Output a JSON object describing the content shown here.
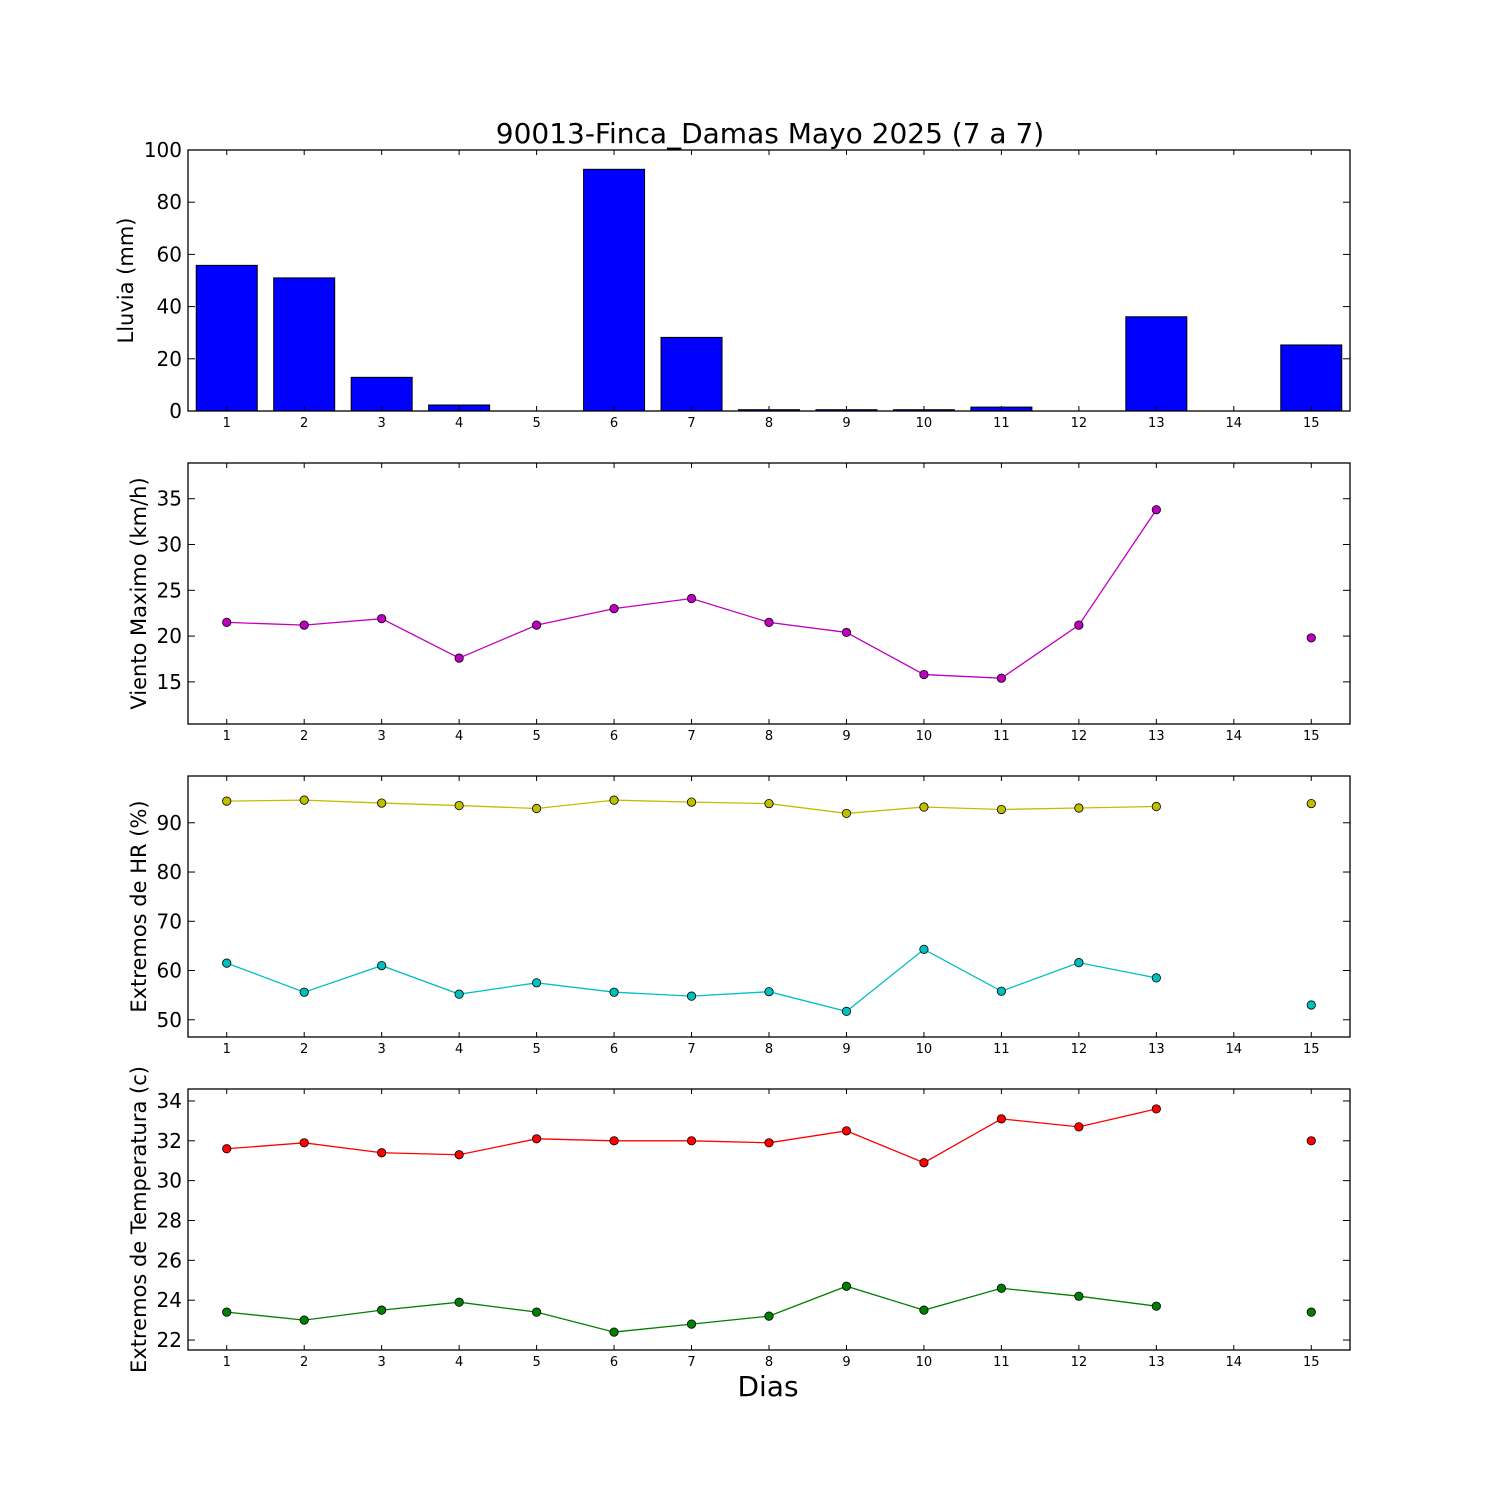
{
  "title": "90013-Finca_Damas Mayo 2025  (7 a 7)",
  "xlabel": "Dias",
  "chart_data": [
    {
      "type": "bar",
      "ylabel": "Lluvia (mm)",
      "x": [
        1,
        2,
        3,
        4,
        5,
        6,
        7,
        8,
        9,
        10,
        11,
        12,
        13,
        14,
        15
      ],
      "xticks": [
        "1",
        "2",
        "3",
        "4",
        "5",
        "6",
        "7",
        "8",
        "9",
        "10",
        "11",
        "12",
        "13",
        "14",
        "15"
      ],
      "ylim": [
        0,
        100
      ],
      "yticks": [
        0,
        20,
        40,
        60,
        80,
        100
      ],
      "series": [
        {
          "color": "#0000ff",
          "values": [
            55.8,
            51.0,
            12.9,
            2.3,
            0.0,
            92.6,
            28.2,
            0.5,
            0.5,
            0.5,
            1.5,
            0.0,
            36.1,
            null,
            25.3
          ]
        }
      ]
    },
    {
      "type": "line",
      "ylabel": "Viento Maximo (km/h)",
      "x": [
        1,
        2,
        3,
        4,
        5,
        6,
        7,
        8,
        9,
        10,
        11,
        12,
        13,
        14,
        15
      ],
      "xticks": [
        "1",
        "2",
        "3",
        "4",
        "5",
        "6",
        "7",
        "8",
        "9",
        "10",
        "11",
        "12",
        "13",
        "14",
        "15"
      ],
      "ylim": [
        10.4,
        38.9
      ],
      "yticks": [
        15,
        20,
        25,
        30,
        35
      ],
      "series": [
        {
          "color": "#bf00bf",
          "values": [
            21.5,
            21.2,
            21.9,
            17.6,
            21.2,
            23.0,
            24.1,
            21.5,
            20.4,
            15.8,
            15.4,
            21.2,
            33.8,
            null,
            19.8
          ]
        }
      ]
    },
    {
      "type": "line",
      "ylabel": "Extremos de HR (%)",
      "x": [
        1,
        2,
        3,
        4,
        5,
        6,
        7,
        8,
        9,
        10,
        11,
        12,
        13,
        14,
        15
      ],
      "xticks": [
        "1",
        "2",
        "3",
        "4",
        "5",
        "6",
        "7",
        "8",
        "9",
        "10",
        "11",
        "12",
        "13",
        "14",
        "15"
      ],
      "ylim": [
        46.5,
        99.5
      ],
      "yticks": [
        50,
        60,
        70,
        80,
        90
      ],
      "series": [
        {
          "color": "#bfbf00",
          "values": [
            94.4,
            94.6,
            94.0,
            93.5,
            92.9,
            94.6,
            94.2,
            93.9,
            91.9,
            93.2,
            92.7,
            93.0,
            93.3,
            null,
            93.9
          ]
        },
        {
          "color": "#00bfbf",
          "values": [
            61.5,
            55.6,
            61.0,
            55.2,
            57.5,
            55.6,
            54.8,
            55.7,
            51.7,
            64.3,
            55.8,
            61.6,
            58.5,
            null,
            53.0
          ]
        }
      ]
    },
    {
      "type": "line",
      "ylabel": "Extremos de Temperatura (c)",
      "x": [
        1,
        2,
        3,
        4,
        5,
        6,
        7,
        8,
        9,
        10,
        11,
        12,
        13,
        14,
        15
      ],
      "xticks": [
        "1",
        "2",
        "3",
        "4",
        "5",
        "6",
        "7",
        "8",
        "9",
        "10",
        "11",
        "12",
        "13",
        "14",
        "15"
      ],
      "ylim": [
        21.5,
        34.6
      ],
      "yticks": [
        22,
        24,
        26,
        28,
        30,
        32,
        34
      ],
      "series": [
        {
          "color": "#ff0000",
          "values": [
            31.6,
            31.9,
            31.4,
            31.3,
            32.1,
            32.0,
            32.0,
            31.9,
            32.5,
            30.9,
            33.1,
            32.7,
            33.6,
            null,
            32.0
          ]
        },
        {
          "color": "#008000",
          "values": [
            23.4,
            23.0,
            23.5,
            23.9,
            23.4,
            22.4,
            22.8,
            23.2,
            24.7,
            23.5,
            24.6,
            24.2,
            23.7,
            null,
            23.4
          ]
        }
      ]
    }
  ]
}
